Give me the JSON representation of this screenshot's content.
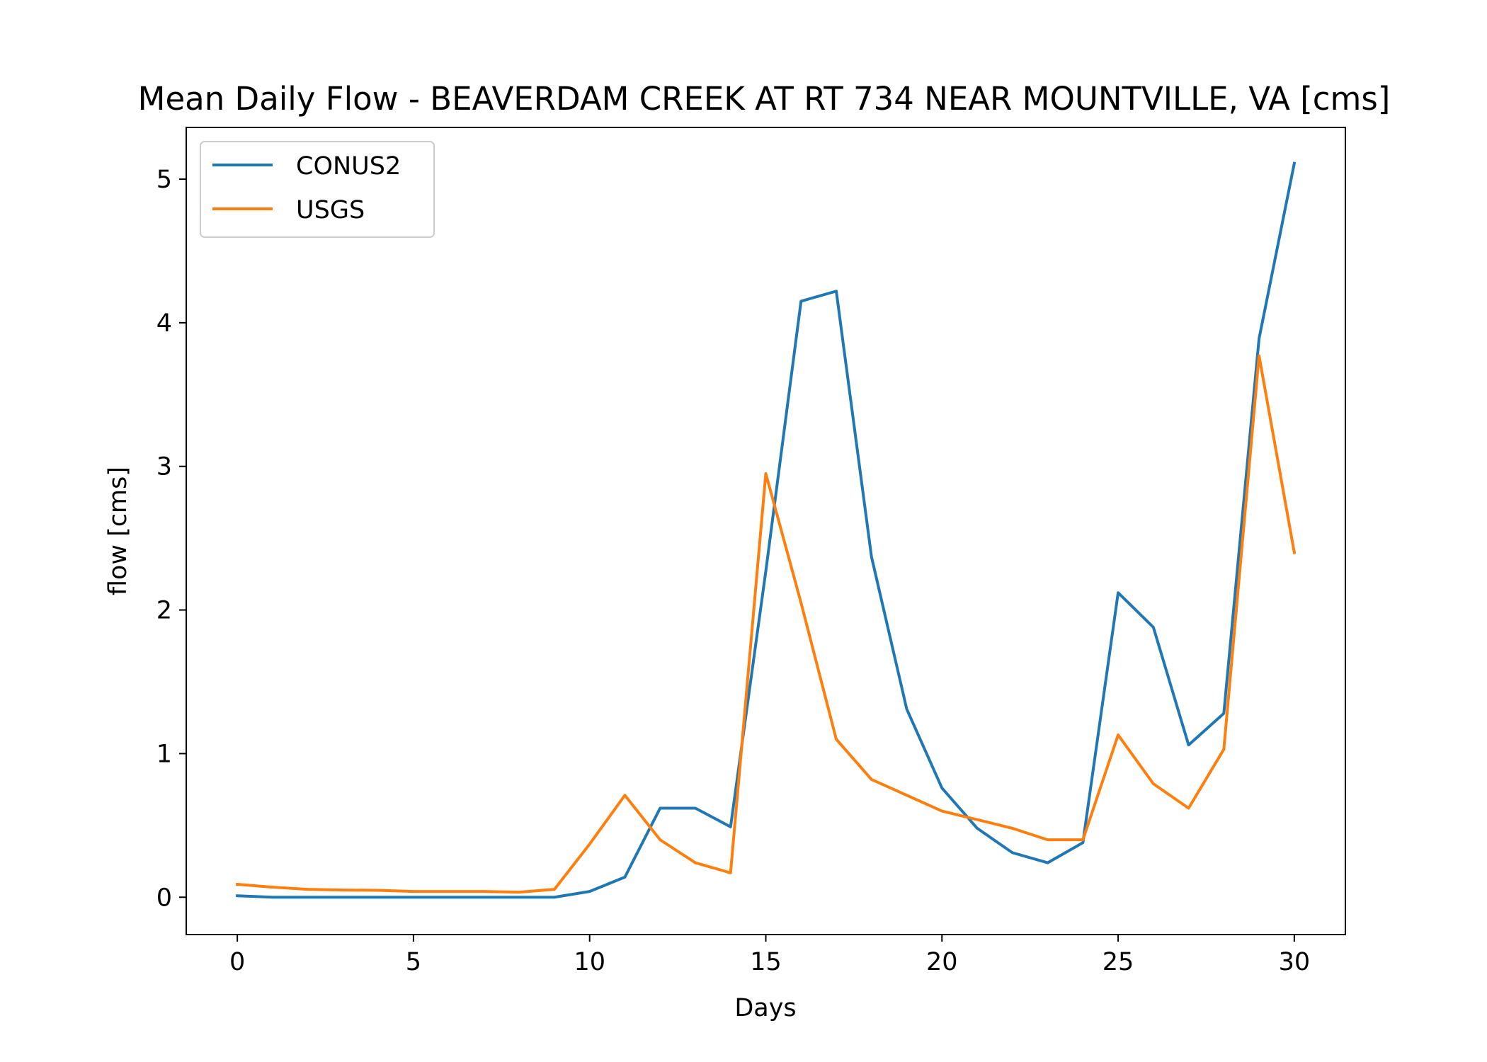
{
  "chart_data": {
    "type": "line",
    "title": "Mean Daily Flow - BEAVERDAM CREEK AT RT 734 NEAR MOUNTVILLE, VA [cms]",
    "xlabel": "Days",
    "ylabel": "flow [cms]",
    "xlim": [
      -1.45,
      31.45
    ],
    "ylim": [
      -0.26,
      5.36
    ],
    "xticks": [
      0,
      5,
      10,
      15,
      20,
      25,
      30
    ],
    "yticks": [
      0,
      1,
      2,
      3,
      4,
      5
    ],
    "grid": false,
    "legend_position": "upper-left",
    "x": [
      0,
      1,
      2,
      3,
      4,
      5,
      6,
      7,
      8,
      9,
      10,
      11,
      12,
      13,
      14,
      15,
      16,
      17,
      18,
      19,
      20,
      21,
      22,
      23,
      24,
      25,
      26,
      27,
      28,
      29,
      30
    ],
    "series": [
      {
        "name": "CONUS2",
        "color": "#1f77b4",
        "values": [
          0.01,
          0.0,
          0.0,
          0.0,
          0.0,
          0.0,
          0.0,
          0.0,
          0.0,
          0.0,
          0.04,
          0.14,
          0.62,
          0.62,
          0.49,
          2.27,
          4.15,
          4.22,
          2.37,
          1.31,
          0.76,
          0.48,
          0.31,
          0.24,
          0.38,
          2.12,
          1.88,
          1.06,
          1.28,
          3.89,
          5.11
        ]
      },
      {
        "name": "USGS",
        "color": "#ff7f0e",
        "values": [
          0.09,
          0.07,
          0.055,
          0.05,
          0.048,
          0.04,
          0.04,
          0.04,
          0.035,
          0.055,
          0.37,
          0.71,
          0.4,
          0.24,
          0.17,
          2.95,
          2.05,
          1.1,
          0.82,
          0.71,
          0.6,
          0.54,
          0.48,
          0.4,
          0.4,
          1.13,
          0.79,
          0.62,
          1.03,
          3.77,
          2.4
        ]
      }
    ]
  }
}
